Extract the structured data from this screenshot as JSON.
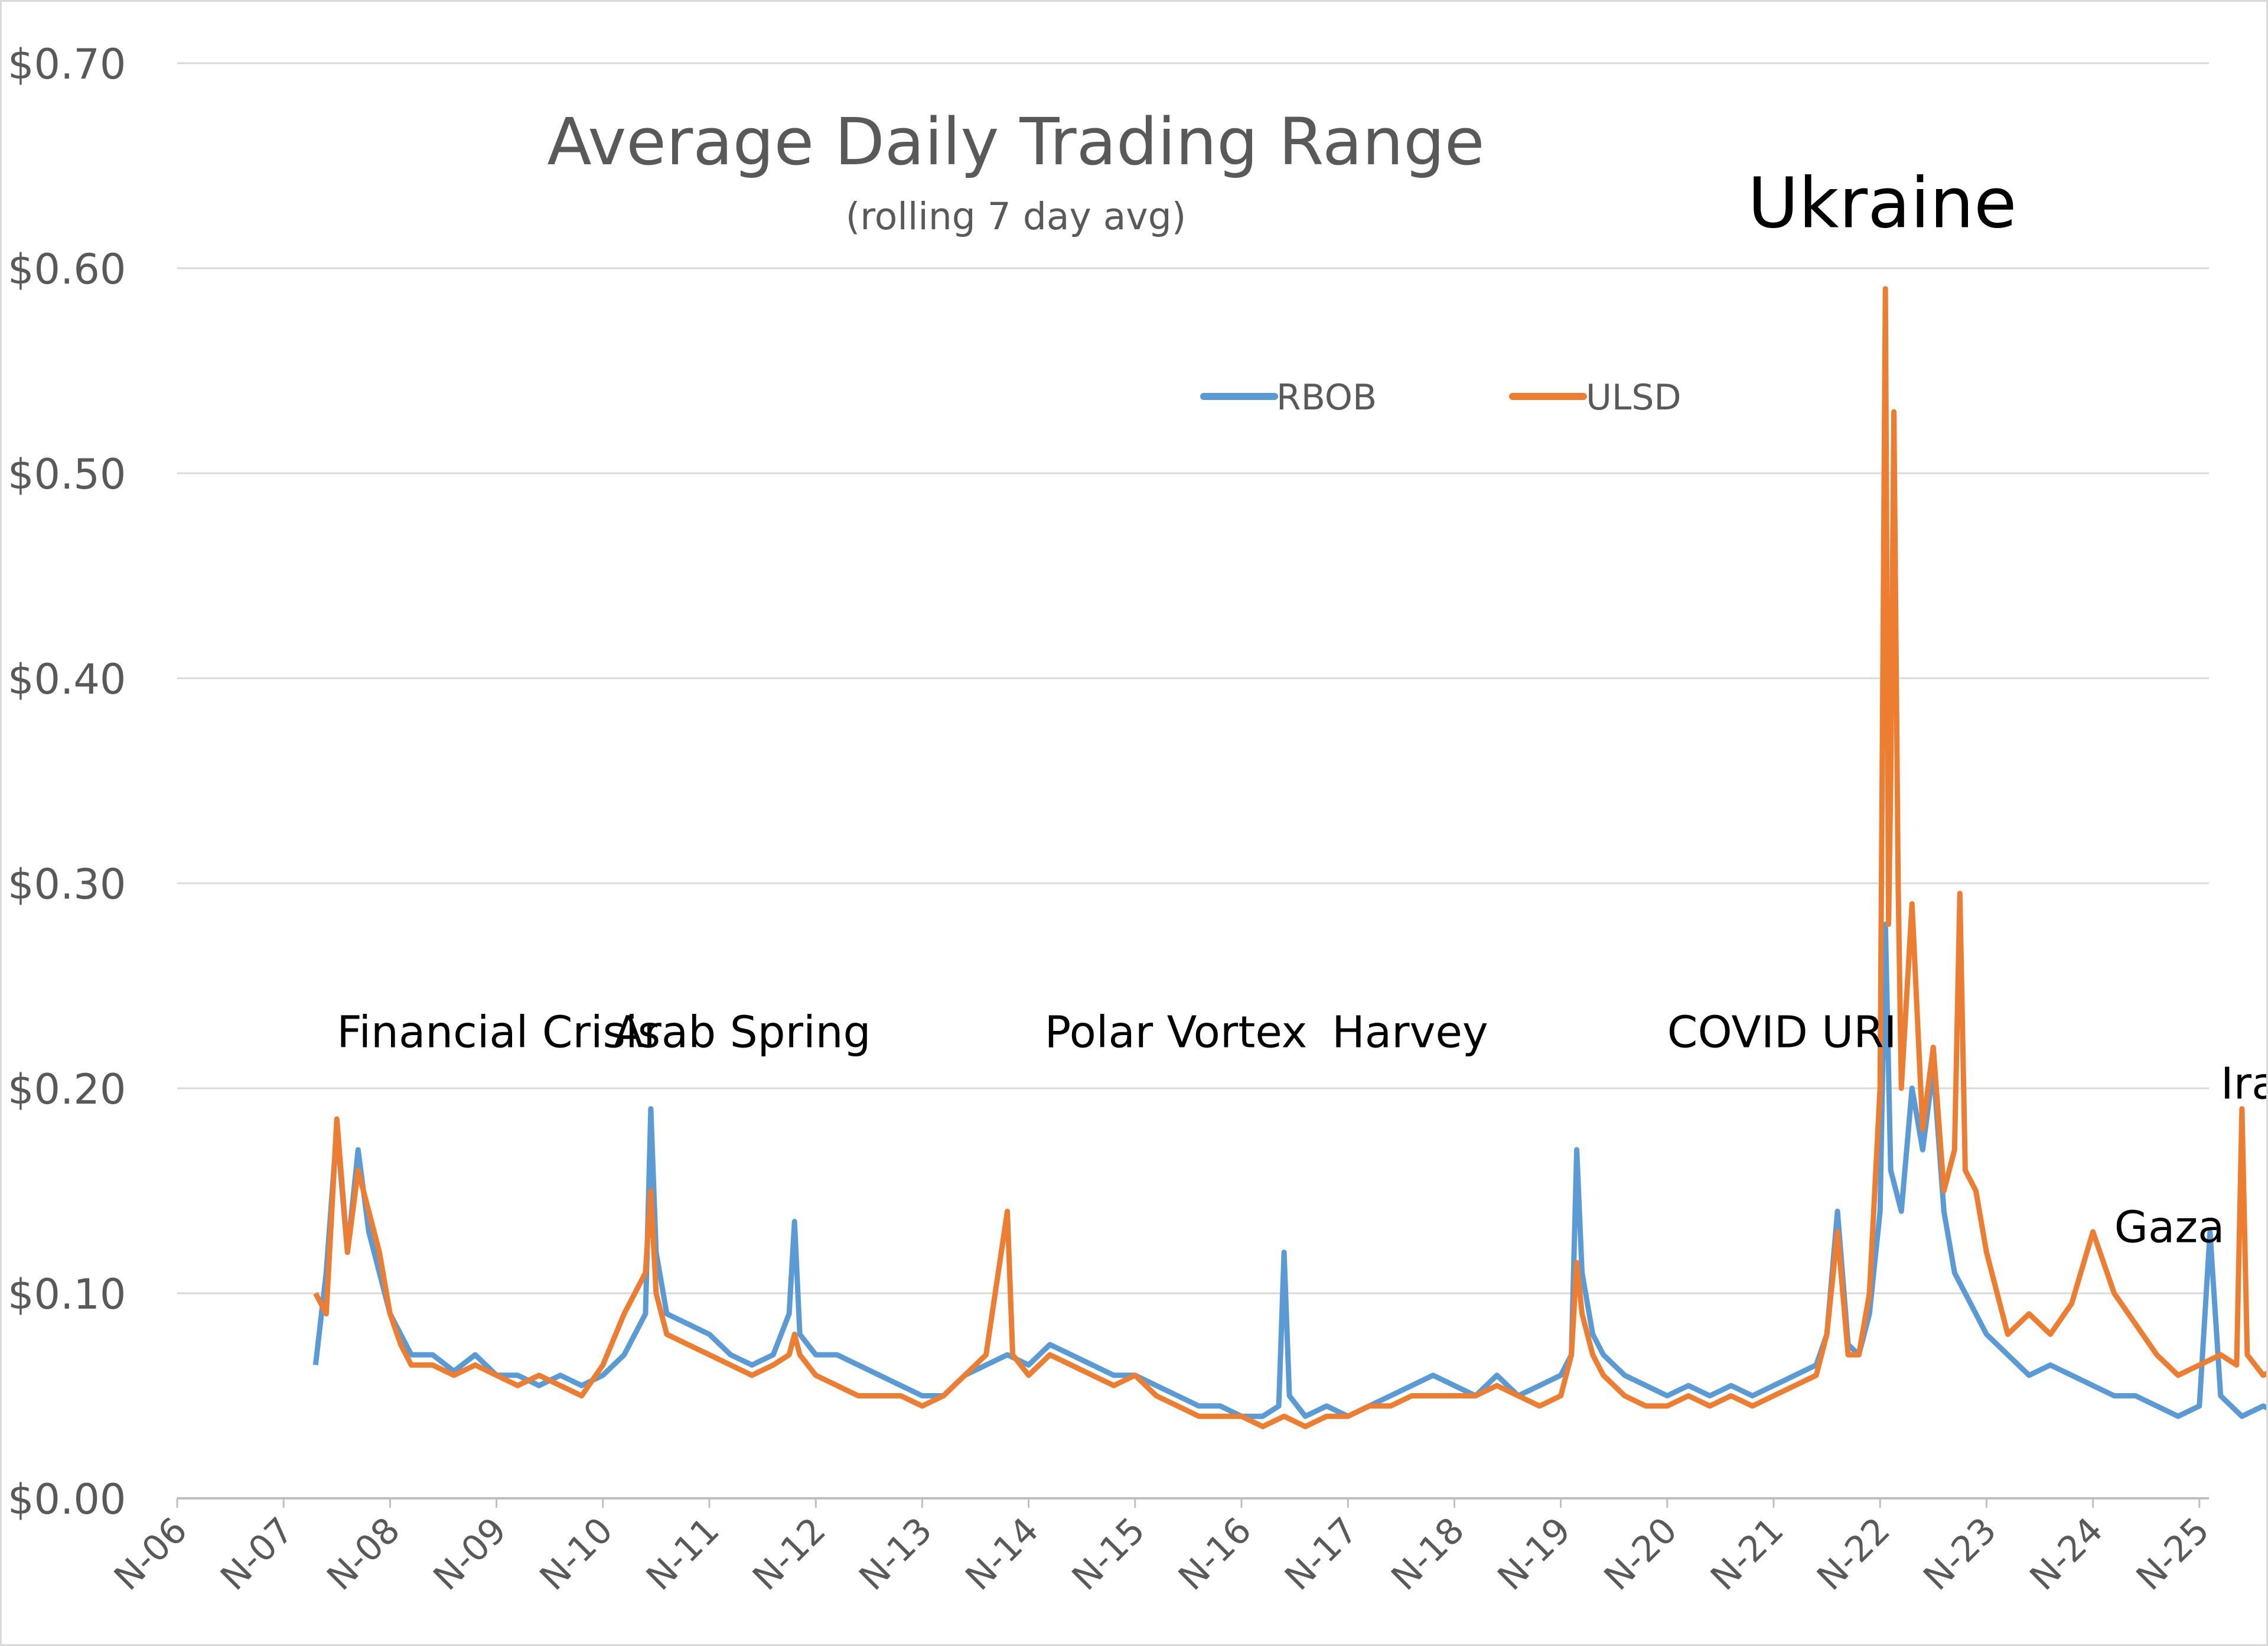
{
  "chart_data": {
    "type": "line",
    "title": "Average Daily Trading Range",
    "subtitle": "(rolling 7 day avg)",
    "xlabel": "",
    "ylabel": "",
    "ylim": [
      0,
      0.7
    ],
    "yticks": [
      "$0.00",
      "$0.10",
      "$0.20",
      "$0.30",
      "$0.40",
      "$0.50",
      "$0.60",
      "$0.70"
    ],
    "xticks": [
      "N-06",
      "N-07",
      "N-08",
      "N-09",
      "N-10",
      "N-11",
      "N-12",
      "N-13",
      "N-14",
      "N-15",
      "N-16",
      "N-17",
      "N-18",
      "N-19",
      "N-20",
      "N-21",
      "N-22",
      "N-23",
      "N-24",
      "N-25"
    ],
    "grid": true,
    "legend_position": "top-center",
    "colors": {
      "RBOB": "#5b9bd5",
      "ULSD": "#ed7d31",
      "grid": "#d9d9d9",
      "text": "#595959"
    },
    "series": [
      {
        "name": "RBOB",
        "points": [
          [
            1.3,
            0.065
          ],
          [
            1.4,
            0.11
          ],
          [
            1.5,
            0.18
          ],
          [
            1.6,
            0.12
          ],
          [
            1.7,
            0.17
          ],
          [
            1.8,
            0.13
          ],
          [
            1.9,
            0.11
          ],
          [
            2.0,
            0.09
          ],
          [
            2.1,
            0.08
          ],
          [
            2.2,
            0.07
          ],
          [
            2.4,
            0.07
          ],
          [
            2.6,
            0.062
          ],
          [
            2.8,
            0.07
          ],
          [
            3.0,
            0.06
          ],
          [
            3.2,
            0.06
          ],
          [
            3.4,
            0.055
          ],
          [
            3.6,
            0.06
          ],
          [
            3.8,
            0.055
          ],
          [
            4.0,
            0.06
          ],
          [
            4.2,
            0.07
          ],
          [
            4.4,
            0.09
          ],
          [
            4.45,
            0.19
          ],
          [
            4.5,
            0.12
          ],
          [
            4.6,
            0.09
          ],
          [
            4.8,
            0.085
          ],
          [
            5.0,
            0.08
          ],
          [
            5.2,
            0.07
          ],
          [
            5.4,
            0.065
          ],
          [
            5.6,
            0.07
          ],
          [
            5.75,
            0.09
          ],
          [
            5.8,
            0.135
          ],
          [
            5.85,
            0.08
          ],
          [
            6.0,
            0.07
          ],
          [
            6.2,
            0.07
          ],
          [
            6.4,
            0.065
          ],
          [
            6.6,
            0.06
          ],
          [
            6.8,
            0.055
          ],
          [
            7.0,
            0.05
          ],
          [
            7.2,
            0.05
          ],
          [
            7.4,
            0.06
          ],
          [
            7.6,
            0.065
          ],
          [
            7.8,
            0.07
          ],
          [
            8.0,
            0.065
          ],
          [
            8.2,
            0.075
          ],
          [
            8.4,
            0.07
          ],
          [
            8.6,
            0.065
          ],
          [
            8.8,
            0.06
          ],
          [
            9.0,
            0.06
          ],
          [
            9.2,
            0.055
          ],
          [
            9.4,
            0.05
          ],
          [
            9.6,
            0.045
          ],
          [
            9.8,
            0.045
          ],
          [
            10.0,
            0.04
          ],
          [
            10.2,
            0.04
          ],
          [
            10.35,
            0.045
          ],
          [
            10.4,
            0.12
          ],
          [
            10.45,
            0.05
          ],
          [
            10.6,
            0.04
          ],
          [
            10.8,
            0.045
          ],
          [
            11.0,
            0.04
          ],
          [
            11.2,
            0.045
          ],
          [
            11.4,
            0.05
          ],
          [
            11.6,
            0.055
          ],
          [
            11.8,
            0.06
          ],
          [
            12.0,
            0.055
          ],
          [
            12.2,
            0.05
          ],
          [
            12.4,
            0.06
          ],
          [
            12.6,
            0.05
          ],
          [
            12.8,
            0.055
          ],
          [
            13.0,
            0.06
          ],
          [
            13.1,
            0.07
          ],
          [
            13.15,
            0.17
          ],
          [
            13.2,
            0.11
          ],
          [
            13.3,
            0.08
          ],
          [
            13.4,
            0.07
          ],
          [
            13.6,
            0.06
          ],
          [
            13.8,
            0.055
          ],
          [
            14.0,
            0.05
          ],
          [
            14.2,
            0.055
          ],
          [
            14.4,
            0.05
          ],
          [
            14.6,
            0.055
          ],
          [
            14.8,
            0.05
          ],
          [
            15.0,
            0.055
          ],
          [
            15.2,
            0.06
          ],
          [
            15.4,
            0.065
          ],
          [
            15.5,
            0.08
          ],
          [
            15.6,
            0.14
          ],
          [
            15.7,
            0.075
          ],
          [
            15.8,
            0.07
          ],
          [
            15.9,
            0.09
          ],
          [
            16.0,
            0.14
          ],
          [
            16.05,
            0.28
          ],
          [
            16.1,
            0.16
          ],
          [
            16.2,
            0.14
          ],
          [
            16.3,
            0.2
          ],
          [
            16.4,
            0.17
          ],
          [
            16.5,
            0.21
          ],
          [
            16.6,
            0.14
          ],
          [
            16.7,
            0.11
          ],
          [
            16.8,
            0.1
          ],
          [
            17.0,
            0.08
          ],
          [
            17.2,
            0.07
          ],
          [
            17.4,
            0.06
          ],
          [
            17.6,
            0.065
          ],
          [
            17.8,
            0.06
          ],
          [
            18.0,
            0.055
          ],
          [
            18.2,
            0.05
          ],
          [
            18.4,
            0.05
          ],
          [
            18.6,
            0.045
          ],
          [
            18.8,
            0.04
          ],
          [
            19.0,
            0.045
          ],
          [
            19.1,
            0.13
          ],
          [
            19.2,
            0.05
          ],
          [
            19.4,
            0.04
          ],
          [
            19.6,
            0.045
          ],
          [
            19.8,
            0.04
          ],
          [
            19.9,
            0.04
          ],
          [
            19.95,
            0.03
          ],
          [
            20.0,
            0.05
          ]
        ]
      },
      {
        "name": "ULSD",
        "points": [
          [
            1.3,
            0.1
          ],
          [
            1.4,
            0.09
          ],
          [
            1.5,
            0.185
          ],
          [
            1.6,
            0.12
          ],
          [
            1.7,
            0.16
          ],
          [
            1.8,
            0.14
          ],
          [
            1.9,
            0.12
          ],
          [
            2.0,
            0.09
          ],
          [
            2.1,
            0.075
          ],
          [
            2.2,
            0.065
          ],
          [
            2.4,
            0.065
          ],
          [
            2.6,
            0.06
          ],
          [
            2.8,
            0.065
          ],
          [
            3.0,
            0.06
          ],
          [
            3.2,
            0.055
          ],
          [
            3.4,
            0.06
          ],
          [
            3.6,
            0.055
          ],
          [
            3.8,
            0.05
          ],
          [
            4.0,
            0.065
          ],
          [
            4.2,
            0.09
          ],
          [
            4.4,
            0.11
          ],
          [
            4.45,
            0.15
          ],
          [
            4.5,
            0.1
          ],
          [
            4.6,
            0.08
          ],
          [
            4.8,
            0.075
          ],
          [
            5.0,
            0.07
          ],
          [
            5.2,
            0.065
          ],
          [
            5.4,
            0.06
          ],
          [
            5.6,
            0.065
          ],
          [
            5.75,
            0.07
          ],
          [
            5.8,
            0.08
          ],
          [
            5.85,
            0.07
          ],
          [
            6.0,
            0.06
          ],
          [
            6.2,
            0.055
          ],
          [
            6.4,
            0.05
          ],
          [
            6.6,
            0.05
          ],
          [
            6.8,
            0.05
          ],
          [
            7.0,
            0.045
          ],
          [
            7.2,
            0.05
          ],
          [
            7.4,
            0.06
          ],
          [
            7.6,
            0.07
          ],
          [
            7.8,
            0.14
          ],
          [
            7.85,
            0.07
          ],
          [
            8.0,
            0.06
          ],
          [
            8.2,
            0.07
          ],
          [
            8.4,
            0.065
          ],
          [
            8.6,
            0.06
          ],
          [
            8.8,
            0.055
          ],
          [
            9.0,
            0.06
          ],
          [
            9.2,
            0.05
          ],
          [
            9.4,
            0.045
          ],
          [
            9.6,
            0.04
          ],
          [
            9.8,
            0.04
          ],
          [
            10.0,
            0.04
          ],
          [
            10.2,
            0.035
          ],
          [
            10.4,
            0.04
          ],
          [
            10.6,
            0.035
          ],
          [
            10.8,
            0.04
          ],
          [
            11.0,
            0.04
          ],
          [
            11.2,
            0.045
          ],
          [
            11.4,
            0.045
          ],
          [
            11.6,
            0.05
          ],
          [
            11.8,
            0.05
          ],
          [
            12.0,
            0.05
          ],
          [
            12.2,
            0.05
          ],
          [
            12.4,
            0.055
          ],
          [
            12.6,
            0.05
          ],
          [
            12.8,
            0.045
          ],
          [
            13.0,
            0.05
          ],
          [
            13.1,
            0.07
          ],
          [
            13.15,
            0.115
          ],
          [
            13.2,
            0.09
          ],
          [
            13.3,
            0.07
          ],
          [
            13.4,
            0.06
          ],
          [
            13.6,
            0.05
          ],
          [
            13.8,
            0.045
          ],
          [
            14.0,
            0.045
          ],
          [
            14.2,
            0.05
          ],
          [
            14.4,
            0.045
          ],
          [
            14.6,
            0.05
          ],
          [
            14.8,
            0.045
          ],
          [
            15.0,
            0.05
          ],
          [
            15.2,
            0.055
          ],
          [
            15.4,
            0.06
          ],
          [
            15.5,
            0.08
          ],
          [
            15.6,
            0.13
          ],
          [
            15.7,
            0.07
          ],
          [
            15.8,
            0.07
          ],
          [
            15.9,
            0.1
          ],
          [
            16.0,
            0.2
          ],
          [
            16.05,
            0.59
          ],
          [
            16.08,
            0.28
          ],
          [
            16.1,
            0.35
          ],
          [
            16.13,
            0.53
          ],
          [
            16.17,
            0.3
          ],
          [
            16.2,
            0.2
          ],
          [
            16.3,
            0.29
          ],
          [
            16.4,
            0.18
          ],
          [
            16.5,
            0.22
          ],
          [
            16.6,
            0.15
          ],
          [
            16.7,
            0.17
          ],
          [
            16.75,
            0.295
          ],
          [
            16.8,
            0.16
          ],
          [
            16.9,
            0.15
          ],
          [
            17.0,
            0.12
          ],
          [
            17.2,
            0.08
          ],
          [
            17.4,
            0.09
          ],
          [
            17.6,
            0.08
          ],
          [
            17.8,
            0.095
          ],
          [
            18.0,
            0.13
          ],
          [
            18.2,
            0.1
          ],
          [
            18.4,
            0.085
          ],
          [
            18.6,
            0.07
          ],
          [
            18.8,
            0.06
          ],
          [
            19.0,
            0.065
          ],
          [
            19.2,
            0.07
          ],
          [
            19.35,
            0.065
          ],
          [
            19.4,
            0.19
          ],
          [
            19.45,
            0.07
          ],
          [
            19.6,
            0.06
          ],
          [
            19.8,
            0.065
          ],
          [
            19.9,
            0.1
          ],
          [
            19.95,
            0.14
          ],
          [
            20.0,
            0.09
          ]
        ]
      }
    ],
    "annotations": [
      {
        "label": "Financial Crisis",
        "x": 1.5,
        "y": 0.22
      },
      {
        "label": "Arab Spring",
        "x": 4.1,
        "y": 0.22
      },
      {
        "label": "Polar Vortex",
        "x": 8.15,
        "y": 0.22
      },
      {
        "label": "Harvey",
        "x": 10.85,
        "y": 0.22
      },
      {
        "label": "COVID",
        "x": 14.0,
        "y": 0.22
      },
      {
        "label": "URI",
        "x": 15.45,
        "y": 0.22
      },
      {
        "label": "Ukraine",
        "x": 16.02,
        "y": 0.62
      },
      {
        "label": "Gaza",
        "x": 18.2,
        "y": 0.125
      },
      {
        "label": "Iran",
        "x": 19.2,
        "y": 0.195
      }
    ]
  }
}
